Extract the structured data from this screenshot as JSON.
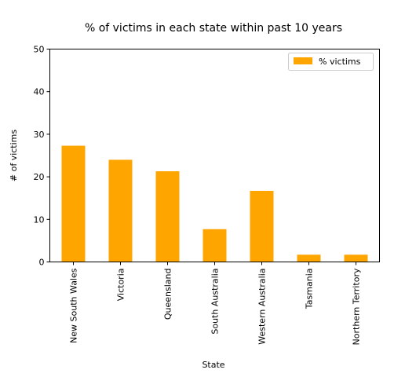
{
  "chart_data": {
    "type": "bar",
    "title": "% of victims in each state within past 10 years",
    "xlabel": "State",
    "ylabel": "# of victims",
    "categories": [
      "New South Wales",
      "Victoria",
      "Queensland",
      "South Australia",
      "Western Australia",
      "Tasmania",
      "Northern Territory"
    ],
    "series": [
      {
        "name": "% victims",
        "values": [
          27.3,
          24.0,
          21.3,
          7.7,
          16.7,
          1.7,
          1.7
        ],
        "color": "#FFA500"
      }
    ],
    "ylim": [
      0,
      50
    ],
    "yticks": [
      0,
      10,
      20,
      30,
      40,
      50
    ],
    "grid": false,
    "legend": "top-right"
  }
}
